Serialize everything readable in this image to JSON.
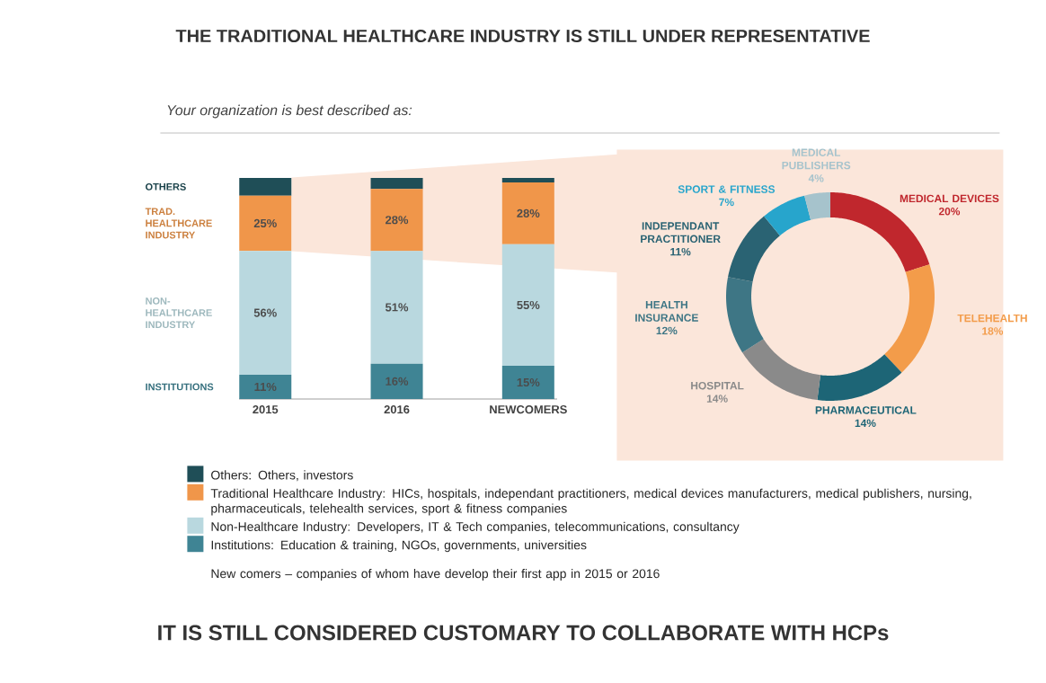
{
  "chart_data": [
    {
      "type": "bar",
      "stacked": true,
      "title": "THE TRADITIONAL HEALTHCARE INDUSTRY IS STILL UNDER REPRESENTATIVE",
      "subtitle": "Your organization is best described as:",
      "categories": [
        "2015",
        "2016",
        "NEWCOMERS"
      ],
      "series": [
        {
          "name": "INSTITUTIONS",
          "color": "#3f8494",
          "values": [
            11,
            16,
            15
          ],
          "value_labels": [
            "11%",
            "16%",
            "15%"
          ]
        },
        {
          "name": "NON-HEALTHCARE INDUSTRY",
          "color": "#b9d8df",
          "values": [
            56,
            51,
            55
          ],
          "value_labels": [
            "56%",
            "51%",
            "55%"
          ]
        },
        {
          "name": "TRAD. HEALTHCARE INDUSTRY",
          "color": "#f0964a",
          "values": [
            25,
            28,
            28
          ],
          "value_labels": [
            "25%",
            "28%",
            "28%"
          ]
        },
        {
          "name": "OTHERS",
          "color": "#1f4e57",
          "values": [
            8,
            5,
            2
          ]
        }
      ],
      "annotations": [
        "Others: Others, investors",
        "Traditional Healthcare Industry: HICs, hospitals, independant practitioners, medical devices manufacturers, medical publishers, nursing, pharmaceuticals, telehealth services, sport & fitness companies",
        "Non-Healthcare Industry: Developers, IT & Tech companies, telecommunications, consultancy",
        "Institutions: Education & training, NGOs, governments, universities",
        "New comers – companies of whom have develop their first app in 2015 or 2016",
        "IT IS STILL CONSIDERED CUSTOMARY TO COLLABORATE WITH HCPs"
      ]
    },
    {
      "type": "donut",
      "categories": [
        "MEDICAL DEVICES",
        "TELEHEALTH",
        "PHARMACEUTICAL",
        "HOSPITAL",
        "HEALTH INSURANCE",
        "INDEPENDANT PRACTITIONER",
        "SPORT & FITNESS",
        "MEDICAL PUBLISHERS"
      ],
      "values": [
        20,
        18,
        14,
        14,
        12,
        11,
        7,
        4
      ],
      "colors": [
        "#c0272d",
        "#f39c4a",
        "#1d6576",
        "#8a8a8a",
        "#3e7685",
        "#2a6373",
        "#27a5cc",
        "#a6c3cc"
      ],
      "value_labels": [
        "20%",
        "18%",
        "14%",
        "14%",
        "12%",
        "11%",
        "7%",
        "4%"
      ]
    }
  ]
}
